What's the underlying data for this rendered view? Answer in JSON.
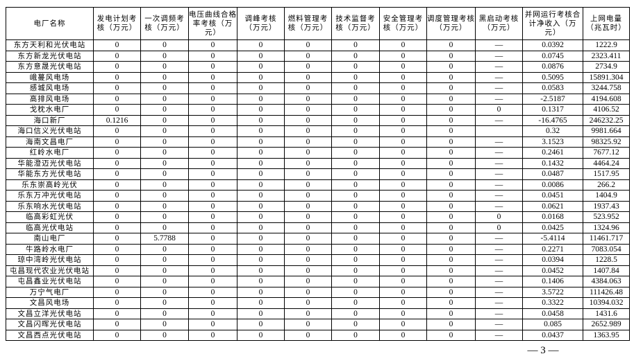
{
  "table": {
    "headers": [
      "电厂名称",
      "发电计划考核（万元）",
      "一次调频考核（万元）",
      "电压曲线合格率考核（万元）",
      "调峰考核（万元）",
      "燃料管理考核（万元）",
      "技术监督考核（万元）",
      "安全管理考核（万元）",
      "调度管理考核（万元）",
      "黑启动考核（万元）",
      "并网运行考核合计净收入（万元）",
      "上网电量（兆瓦时）"
    ],
    "rows": [
      [
        "东方天利和光伏电站",
        "0",
        "0",
        "0",
        "0",
        "0",
        "0",
        "0",
        "0",
        "—",
        "0.0392",
        "1222.9"
      ],
      [
        "东方新龙光伏电站",
        "0",
        "0",
        "0",
        "0",
        "0",
        "0",
        "0",
        "0",
        "—",
        "0.0745",
        "2323.411"
      ],
      [
        "东方意晟光伏电站",
        "0",
        "0",
        "0",
        "0",
        "0",
        "0",
        "0",
        "0",
        "—",
        "0.0876",
        "2734.9"
      ],
      [
        "峨蔓风电场",
        "0",
        "0",
        "0",
        "0",
        "0",
        "0",
        "0",
        "0",
        "—",
        "0.5095",
        "15891.304"
      ],
      [
        "感城风电场",
        "0",
        "0",
        "0",
        "0",
        "0",
        "0",
        "0",
        "0",
        "—",
        "0.0583",
        "3244.758"
      ],
      [
        "高排风电场",
        "0",
        "0",
        "0",
        "0",
        "0",
        "0",
        "0",
        "0",
        "—",
        "-2.5187",
        "4194.608"
      ],
      [
        "戈枕水电厂",
        "0",
        "0",
        "0",
        "0",
        "0",
        "0",
        "0",
        "0",
        "0",
        "0.1317",
        "4106.52"
      ],
      [
        "海口新厂",
        "0.1216",
        "0",
        "0",
        "0",
        "0",
        "0",
        "0",
        "0",
        "—",
        "-16.4765",
        "246232.25"
      ],
      [
        "海口信义光伏电站",
        "0",
        "0",
        "0",
        "0",
        "0",
        "0",
        "0",
        "0",
        "",
        "0.32",
        "9981.664"
      ],
      [
        "海南文昌电厂",
        "0",
        "0",
        "0",
        "0",
        "0",
        "0",
        "0",
        "0",
        "—",
        "3.1523",
        "98325.92"
      ],
      [
        "红岭水电厂",
        "0",
        "0",
        "0",
        "0",
        "0",
        "0",
        "0",
        "0",
        "—",
        "0.2461",
        "7677.12"
      ],
      [
        "华能澄迈光伏电站",
        "0",
        "0",
        "0",
        "0",
        "0",
        "0",
        "0",
        "0",
        "—",
        "0.1432",
        "4464.24"
      ],
      [
        "华能东方光伏电站",
        "0",
        "0",
        "0",
        "0",
        "0",
        "0",
        "0",
        "0",
        "—",
        "0.0487",
        "1517.95"
      ],
      [
        "乐东崇高岭光伏",
        "0",
        "0",
        "0",
        "0",
        "0",
        "0",
        "0",
        "0",
        "—",
        "0.0086",
        "266.2"
      ],
      [
        "乐东万冲光伏电站",
        "0",
        "0",
        "0",
        "0",
        "0",
        "0",
        "0",
        "0",
        "—",
        "0.0451",
        "1404.9"
      ],
      [
        "乐东响水光伏电站",
        "0",
        "0",
        "0",
        "0",
        "0",
        "0",
        "0",
        "0",
        "—",
        "0.0621",
        "1937.43"
      ],
      [
        "临高彩虹光伏",
        "0",
        "0",
        "0",
        "0",
        "0",
        "0",
        "0",
        "0",
        "0",
        "0.0168",
        "523.952"
      ],
      [
        "临高光伏电站",
        "0",
        "0",
        "0",
        "0",
        "0",
        "0",
        "0",
        "0",
        "0",
        "0.0425",
        "1324.96"
      ],
      [
        "南山电厂",
        "0",
        "5.7788",
        "0",
        "0",
        "0",
        "0",
        "0",
        "0",
        "—",
        "-5.4114",
        "11461.717"
      ],
      [
        "牛路岭水电厂",
        "0",
        "0",
        "0",
        "0",
        "0",
        "0",
        "0",
        "0",
        "—",
        "0.2271",
        "7083.054"
      ],
      [
        "琼中湾岭光伏电站",
        "0",
        "0",
        "0",
        "0",
        "0",
        "0",
        "0",
        "0",
        "—",
        "0.0394",
        "1228.5"
      ],
      [
        "屯昌现代农业光伏电站",
        "0",
        "0",
        "0",
        "0",
        "0",
        "0",
        "0",
        "0",
        "—",
        "0.0452",
        "1407.84"
      ],
      [
        "屯昌鑫业光伏电站",
        "0",
        "0",
        "0",
        "0",
        "0",
        "0",
        "0",
        "0",
        "—",
        "0.1406",
        "4384.063"
      ],
      [
        "万宁气电厂",
        "0",
        "0",
        "0",
        "0",
        "0",
        "0",
        "0",
        "0",
        "—",
        "3.5722",
        "111426.48"
      ],
      [
        "文昌风电场",
        "0",
        "0",
        "0",
        "0",
        "0",
        "0",
        "0",
        "0",
        "—",
        "0.3322",
        "10394.032"
      ],
      [
        "文昌立洋光伏电站",
        "0",
        "0",
        "0",
        "0",
        "0",
        "0",
        "0",
        "0",
        "—",
        "0.0458",
        "1431.6"
      ],
      [
        "文昌闪晖光伏电站",
        "0",
        "0",
        "0",
        "0",
        "0",
        "0",
        "0",
        "0",
        "—",
        "0.085",
        "2652.989"
      ],
      [
        "文昌西点光伏电站",
        "0",
        "0",
        "0",
        "0",
        "0",
        "0",
        "0",
        "0",
        "—",
        "0.0437",
        "1363.95"
      ]
    ]
  },
  "page_number": "— 3 —"
}
